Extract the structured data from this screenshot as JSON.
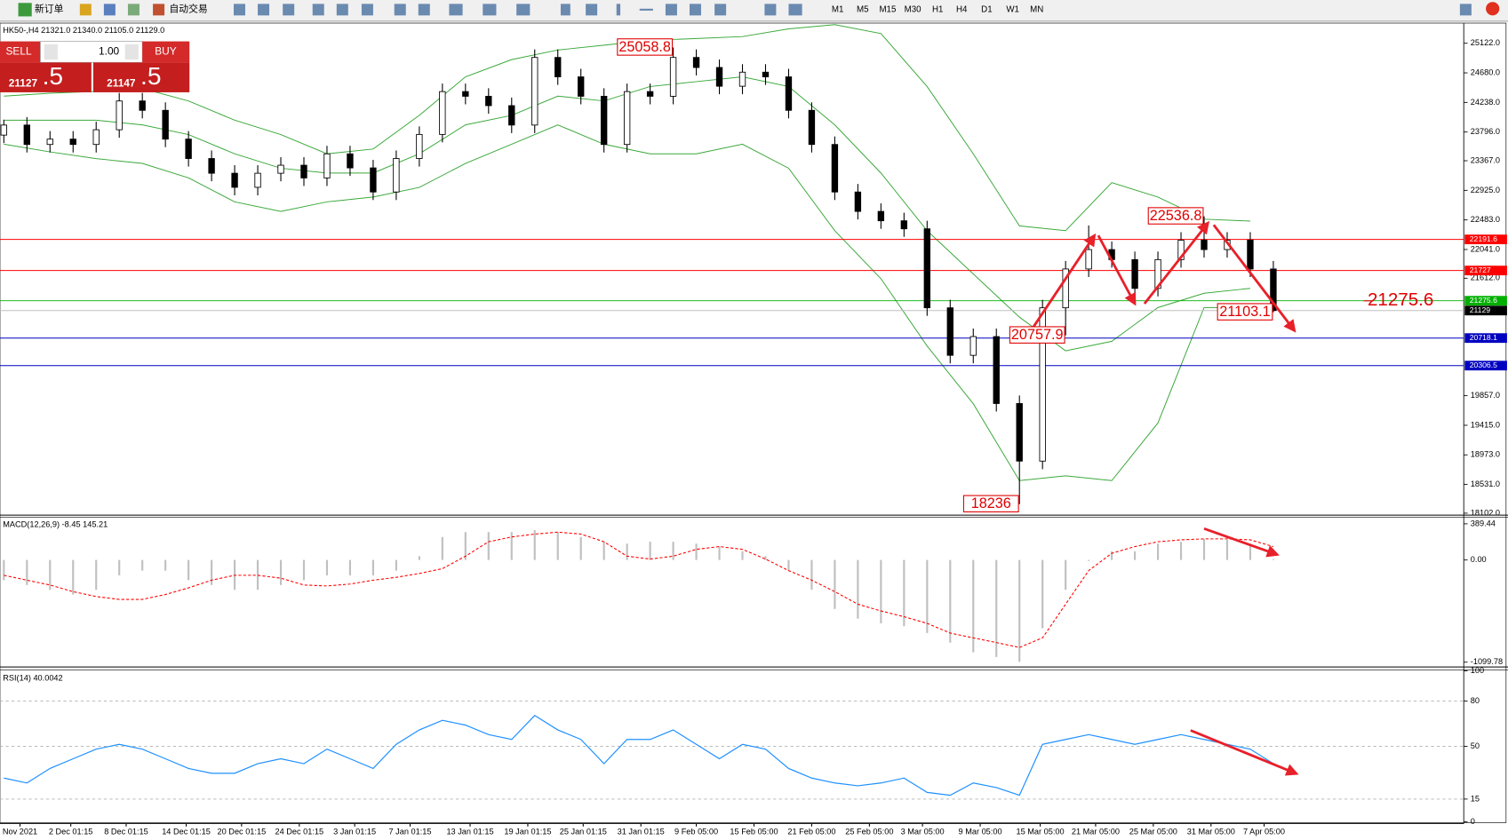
{
  "toolbar": {
    "new_order": "新订单",
    "auto_trading": "自动交易",
    "timeframes": [
      "M1",
      "M5",
      "M15",
      "M30",
      "H1",
      "H4",
      "D1",
      "W1",
      "MN"
    ]
  },
  "trade_panel": {
    "sell": "SELL",
    "buy": "BUY",
    "volume": "1.00",
    "sell_price": "21127",
    "sell_price_big": ".5",
    "buy_price": "21147",
    "buy_price_big": ".5"
  },
  "chart_data": [
    {
      "type": "candlestick",
      "title": "HK50-,H4  21321.0 21340.0 21105.0 21129.0",
      "ylim": [
        18087,
        25423
      ],
      "yticks": [
        {
          "value": 25122,
          "label": "25122.0"
        },
        {
          "value": 24680,
          "label": "24680.0"
        },
        {
          "value": 24238,
          "label": "24238.0"
        },
        {
          "value": 23796,
          "label": "23796.0"
        },
        {
          "value": 23367,
          "label": "23367.0"
        },
        {
          "value": 22925,
          "label": "22925.0"
        },
        {
          "value": 22483,
          "label": "22483.0"
        },
        {
          "value": 22041,
          "label": "22041.0"
        },
        {
          "value": 21612,
          "label": "21612.0"
        },
        {
          "value": 19857,
          "label": "19857.0"
        },
        {
          "value": 19415,
          "label": "19415.0"
        },
        {
          "value": 18973,
          "label": "18973.0"
        },
        {
          "value": 18531,
          "label": "18531.0"
        },
        {
          "value": 18102,
          "label": "18102.0"
        }
      ],
      "series": [
        {
          "up_color": "#ffffff",
          "down_color": "#000000",
          "values": [
            [
              23750,
              23980,
              23630,
              23900
            ],
            [
              23900,
              24020,
              23490,
              23610
            ],
            [
              23610,
              23810,
              23490,
              23690
            ],
            [
              23690,
              23810,
              23490,
              23610
            ],
            [
              23610,
              23950,
              23490,
              23830
            ],
            [
              23830,
              24380,
              23710,
              24260
            ],
            [
              24260,
              24380,
              24000,
              24120
            ],
            [
              24120,
              24240,
              23570,
              23690
            ],
            [
              23690,
              23810,
              23280,
              23400
            ],
            [
              23400,
              23520,
              23060,
              23180
            ],
            [
              23180,
              23300,
              22850,
              22970
            ],
            [
              22970,
              23300,
              22850,
              23180
            ],
            [
              23180,
              23420,
              23060,
              23300
            ],
            [
              23300,
              23420,
              22990,
              23110
            ],
            [
              23110,
              23590,
              22990,
              23470
            ],
            [
              23470,
              23590,
              23140,
              23260
            ],
            [
              23260,
              23380,
              22780,
              22900
            ],
            [
              22900,
              23520,
              22780,
              23400
            ],
            [
              23400,
              23880,
              23280,
              23760
            ],
            [
              23760,
              24520,
              23640,
              24400
            ],
            [
              24400,
              24520,
              24210,
              24330
            ],
            [
              24330,
              24450,
              24070,
              24190
            ],
            [
              24190,
              24310,
              23780,
              23900
            ],
            [
              23900,
              25030,
              23780,
              24910
            ],
            [
              24910,
              25030,
              24500,
              24620
            ],
            [
              24620,
              24740,
              24210,
              24330
            ],
            [
              24330,
              24450,
              23490,
              23610
            ],
            [
              23610,
              24520,
              23490,
              24400
            ],
            [
              24400,
              24520,
              24210,
              24330
            ],
            [
              24330,
              25058.8,
              24210,
              24910
            ],
            [
              24910,
              25030,
              24640,
              24760
            ],
            [
              24760,
              24880,
              24360,
              24480
            ],
            [
              24480,
              24810,
              24360,
              24690
            ],
            [
              24690,
              24810,
              24500,
              24620
            ],
            [
              24620,
              24740,
              24000,
              24120
            ],
            [
              24120,
              24240,
              23490,
              23610
            ],
            [
              23610,
              23730,
              22780,
              22900
            ],
            [
              22900,
              23020,
              22490,
              22610
            ],
            [
              22610,
              22730,
              22350,
              22470
            ],
            [
              22470,
              22590,
              22230,
              22350
            ],
            [
              22350,
              22470,
              21050,
              21170
            ],
            [
              21170,
              21290,
              20340,
              20460
            ],
            [
              20460,
              20860,
              20340,
              20740
            ],
            [
              20740,
              20860,
              19620,
              19740
            ],
            [
              19740,
              19860,
              18236.0,
              18880
            ],
            [
              18880,
              21290,
              18760,
              21170
            ],
            [
              21170,
              21870,
              20757.9,
              21750
            ],
            [
              21750,
              22400,
              21630,
              22040
            ],
            [
              22040,
              22160,
              21770,
              21890
            ],
            [
              21890,
              22010,
              21340,
              21460
            ],
            [
              21460,
              22010,
              21340,
              21890
            ],
            [
              21890,
              22300,
              21770,
              22180
            ],
            [
              22180,
              22536.8,
              21920,
              22040
            ],
            [
              22040,
              22300,
              21920,
              22180
            ],
            [
              22180,
              22300,
              21630,
              21750
            ],
            [
              21750,
              21870,
              21103.1,
              21129
            ]
          ]
        }
      ],
      "bands": {
        "color": "#3aa83a",
        "x": [
          0,
          2,
          4,
          6,
          8,
          10,
          12,
          14,
          16,
          18,
          20,
          22,
          24,
          26,
          28,
          30,
          32,
          34,
          36,
          38,
          40,
          42,
          44,
          46,
          48,
          50,
          52,
          54
        ],
        "upper": [
          24332,
          24375,
          24404,
          24447,
          24260,
          23973,
          23758,
          23471,
          23543,
          24045,
          24620,
          24878,
          25021,
          25093,
          25165,
          25194,
          25222,
          25337,
          25400,
          25266,
          24476,
          23471,
          22394,
          22322,
          23040,
          22824,
          22494,
          22466
        ],
        "middle": [
          23973,
          23973,
          23973,
          23902,
          23758,
          23471,
          23255,
          23184,
          23184,
          23471,
          23902,
          24045,
          24332,
          24260,
          24476,
          24548,
          24620,
          24476,
          23902,
          23184,
          22322,
          21676,
          21030,
          20527,
          20670,
          21173,
          21388,
          21460
        ],
        "lower": [
          23614,
          23499,
          23399,
          23327,
          23112,
          22753,
          22609,
          22753,
          22824,
          22968,
          23327,
          23614,
          23902,
          23614,
          23471,
          23471,
          23614,
          23255,
          22322,
          21604,
          20599,
          19737,
          18588,
          18660,
          18588,
          19450,
          21173,
          21173
        ]
      },
      "levels": [
        {
          "value": 22191.6,
          "color": "#ff0000",
          "label_color": "#ff0000"
        },
        {
          "value": 21727.0,
          "color": "#ff0000",
          "label_color": "#ff0000"
        },
        {
          "value": 21275.6,
          "color": "#00b000",
          "label_color": "#00b000"
        },
        {
          "value": 21129.0,
          "color": "#c0c0c0",
          "label_color": "#000000"
        },
        {
          "value": 20718.1,
          "color": "#0000c0",
          "label_color": "#0000c0"
        },
        {
          "value": 20306.5,
          "color": "#0000c0",
          "label_color": "#0000c0"
        }
      ],
      "annotations": [
        {
          "value": 25058.8,
          "index": 29
        },
        {
          "value": 22536.8,
          "index": 52
        },
        {
          "value": 20757.9,
          "index": 46
        },
        {
          "value": 18236.0,
          "index": 44
        },
        {
          "value": 21103.1,
          "index": 55
        }
      ]
    },
    {
      "type": "macd",
      "title": "MACD(12,26,9) -8.45 145.21",
      "ylim": [
        -1141,
        462
      ],
      "yticks": [
        {
          "value": 389.44,
          "label": "389.44"
        },
        {
          "value": 0,
          "label": "0.00"
        },
        {
          "value": -1099.78,
          "label": "-1099.78"
        }
      ],
      "series": [
        {
          "color": "#c0c0c0",
          "values": [
            -217,
            -269,
            -321,
            -372,
            -321,
            -165,
            -114,
            -114,
            -217,
            -269,
            -321,
            -321,
            -269,
            -217,
            -165,
            -165,
            -165,
            -114,
            41,
            248,
            300,
            300,
            300,
            321,
            300,
            248,
            196,
            176,
            196,
            196,
            176,
            145,
            93,
            41,
            -114,
            -321,
            -527,
            -631,
            -682,
            -713,
            -786,
            -889,
            -993,
            -1044,
            -1096,
            -734,
            -321,
            -10,
            93,
            93,
            176,
            196,
            227,
            217,
            176,
            10
          ]
        },
        {
          "color": "#ff0000",
          "values": [
            -165,
            -217,
            -269,
            -341,
            -393,
            -424,
            -424,
            -372,
            -300,
            -217,
            -165,
            -165,
            -196,
            -269,
            -279,
            -259,
            -217,
            -186,
            -145,
            -93,
            41,
            196,
            248,
            279,
            300,
            279,
            196,
            41,
            10,
            41,
            114,
            145,
            114,
            10,
            -114,
            -217,
            -341,
            -476,
            -548,
            -610,
            -682,
            -786,
            -838,
            -889,
            -941,
            -838,
            -476,
            -114,
            72,
            145,
            196,
            217,
            227,
            227,
            217,
            145
          ]
        }
      ]
    },
    {
      "type": "line",
      "title": "RSI(14) 40.0042",
      "ylim": [
        0,
        100
      ],
      "yticks": [
        100,
        80,
        50,
        15,
        0
      ],
      "levels": [
        80,
        50,
        15
      ],
      "series": [
        {
          "color": "#1e90ff",
          "values": [
            28.9,
            25.7,
            35.3,
            41.7,
            48.1,
            51.3,
            48.1,
            41.7,
            35.3,
            32.1,
            32.1,
            38.5,
            41.7,
            38.5,
            48.1,
            41.7,
            35.3,
            51.3,
            60.8,
            67.2,
            64.0,
            57.7,
            54.5,
            70.4,
            60.8,
            54.5,
            38.5,
            54.5,
            54.5,
            60.8,
            51.3,
            41.7,
            51.3,
            48.1,
            35.3,
            28.9,
            25.7,
            23.8,
            25.7,
            28.9,
            19.4,
            17.5,
            25.7,
            22.6,
            17.5,
            51.3,
            54.5,
            57.7,
            54.5,
            51.3,
            54.5,
            57.7,
            54.5,
            51.3,
            48.1,
            38.5
          ]
        }
      ],
      "xticks": [
        {
          "value": 0.7,
          "label": "Nov 2021"
        },
        {
          "value": 2.9,
          "label": "2 Dec 01:15"
        },
        {
          "value": 5.3,
          "label": "8 Dec 01:15"
        },
        {
          "value": 7.9,
          "label": "14 Dec 01:15"
        },
        {
          "value": 10.3,
          "label": "20 Dec 01:15"
        },
        {
          "value": 12.8,
          "label": "24 Dec 01:15"
        },
        {
          "value": 15.2,
          "label": "3 Jan 01:15"
        },
        {
          "value": 17.6,
          "label": "7 Jan 01:15"
        },
        {
          "value": 20.2,
          "label": "13 Jan 01:15"
        },
        {
          "value": 22.7,
          "label": "19 Jan 01:15"
        },
        {
          "value": 25.1,
          "label": "25 Jan 01:15"
        },
        {
          "value": 27.6,
          "label": "31 Jan 01:15"
        },
        {
          "value": 30,
          "label": "9 Feb 05:00"
        },
        {
          "value": 32.5,
          "label": "15 Feb 05:00"
        },
        {
          "value": 35,
          "label": "21 Feb 05:00"
        },
        {
          "value": 37.5,
          "label": "25 Feb 05:00"
        },
        {
          "value": 39.8,
          "label": "3 Mar 05:00"
        },
        {
          "value": 42.3,
          "label": "9 Mar 05:00"
        },
        {
          "value": 44.9,
          "label": "15 Mar 05:00"
        },
        {
          "value": 47.3,
          "label": "21 Mar 05:00"
        },
        {
          "value": 49.8,
          "label": "25 Mar 05:00"
        },
        {
          "value": 52.3,
          "label": "31 Mar 05:00"
        },
        {
          "value": 54.6,
          "label": "7 Apr 05:00"
        }
      ]
    }
  ]
}
